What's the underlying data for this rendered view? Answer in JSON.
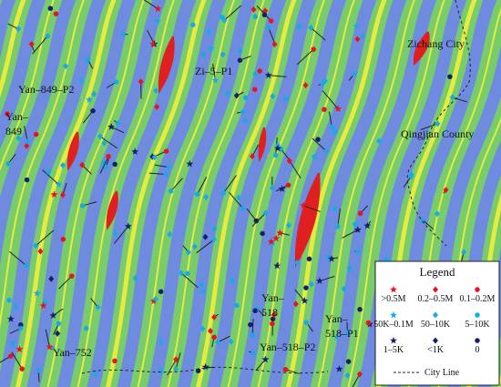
{
  "map_labels": [
    {
      "lines": [
        "Zichang City"
      ],
      "at": "ne"
    },
    {
      "lines": [
        "Qingjian County"
      ],
      "at": "e"
    },
    {
      "lines": [
        "Zi–5–P1"
      ],
      "at": "n"
    },
    {
      "lines": [
        "Yan–849–P2"
      ],
      "at": "nw"
    },
    {
      "lines": [
        "Yan–",
        "849"
      ],
      "at": "w"
    },
    {
      "lines": [
        "Yan–752"
      ],
      "at": "sw"
    },
    {
      "lines": [
        "Yan–",
        "518"
      ],
      "at": "s"
    },
    {
      "lines": [
        "Yan–518–P2"
      ],
      "at": "s2"
    },
    {
      "lines": [
        "Yan–",
        "518–P1"
      ],
      "at": "se"
    }
  ],
  "legend": {
    "title": "Legend",
    "items": [
      {
        "label": ">0.5M",
        "shape": "star",
        "color": "#e8141c"
      },
      {
        "label": "0.2–0.5M",
        "shape": "diamond",
        "color": "#e8141c"
      },
      {
        "label": "0.1–0.2M",
        "shape": "circle",
        "color": "#e8141c"
      },
      {
        "label": "50K–0.1M",
        "shape": "star",
        "color": "#19a9e8"
      },
      {
        "label": "50–10K",
        "shape": "diamond",
        "color": "#19a9e8"
      },
      {
        "label": "5–10K",
        "shape": "circle",
        "color": "#19a9e8"
      },
      {
        "label": "1–5K",
        "shape": "star",
        "color": "#16206a"
      },
      {
        "label": "<1K",
        "shape": "diamond",
        "color": "#16206a"
      },
      {
        "label": "0",
        "shape": "circle",
        "color": "#16206a"
      }
    ],
    "line_label": "City Line"
  }
}
